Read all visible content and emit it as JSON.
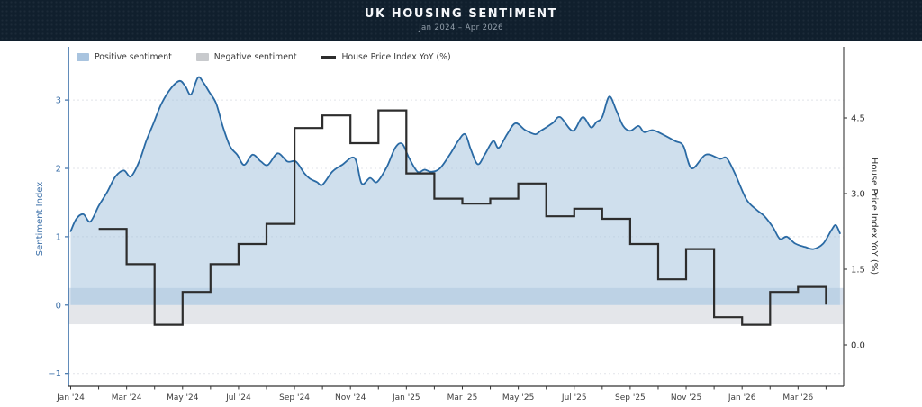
{
  "header": {
    "title": "UK HOUSING SENTIMENT",
    "subtitle": "Jan 2024 – Apr 2026"
  },
  "legend": {
    "items": [
      {
        "label": "Positive sentiment",
        "swatch_type": "patch",
        "color": "#a9c4df"
      },
      {
        "label": "Negative sentiment",
        "swatch_type": "patch",
        "color": "#c8cacd"
      },
      {
        "label": "House Price Index YoY (%)",
        "swatch_type": "line",
        "color": "#2d2d2d"
      }
    ]
  },
  "chart_data": {
    "type": "line",
    "title": "UK HOUSING SENTIMENT",
    "subtitle": "Jan 2024 – Apr 2026",
    "grid": "dashed horizontal at left-axis integers",
    "legend_position": "top-left, no frame",
    "x_axis": {
      "start": "2024-01",
      "end": "2026-04",
      "tick_month_offsets": [
        0,
        2,
        4,
        6,
        8,
        10,
        12,
        14,
        16,
        18,
        20,
        22,
        24,
        26
      ],
      "tick_labels": [
        "Jan '24",
        "Mar '24",
        "May '24",
        "Jul '24",
        "Sep '24",
        "Nov '24",
        "Jan '25",
        "Mar '25",
        "May '25",
        "Jul '25",
        "Sep '25",
        "Nov '25",
        "Jan '26",
        "Mar '26"
      ],
      "minor_ticks": "every month",
      "range_months": [
        -0.1,
        27.65
      ]
    },
    "left_axis": {
      "label": "Sentiment Index",
      "ticks": [
        3,
        2,
        1,
        0,
        -1
      ],
      "tick_labels": [
        "3",
        "2",
        "1",
        "0",
        "−1"
      ],
      "gridline_values": [
        3,
        2,
        1,
        -1
      ],
      "range": [
        -1.19,
        3.78
      ],
      "color": "#3b6fa8"
    },
    "right_axis": {
      "label": "House Price Index YoY (%)",
      "ticks": [
        4.5,
        3.0,
        1.5,
        0.0
      ],
      "tick_labels": [
        "4.5",
        "3.0",
        "1.5",
        "0.0"
      ],
      "range": [
        -0.82,
        5.91
      ],
      "color": "#303030"
    },
    "bands": [
      {
        "name": "positive-sentiment-band",
        "axis": "left",
        "from": 0,
        "to": 0.25,
        "color": "rgba(125,158,200,0.30)"
      },
      {
        "name": "negative-sentiment-band",
        "axis": "left",
        "from": -0.28,
        "to": 0,
        "color": "rgba(152,160,172,0.26)"
      }
    ],
    "series": [
      {
        "name": "Positive sentiment",
        "axis": "left",
        "style": "area+line",
        "line_color": "#2a6aa4",
        "fill_color": "rgba(168,196,223,0.55)",
        "x_unit": "months since Jan 2024 (fractional, ~weekly samples)",
        "points": [
          [
            0,
            1.08
          ],
          [
            0.2,
            1.26
          ],
          [
            0.45,
            1.33
          ],
          [
            0.7,
            1.22
          ],
          [
            1.0,
            1.45
          ],
          [
            1.3,
            1.65
          ],
          [
            1.6,
            1.88
          ],
          [
            1.9,
            1.97
          ],
          [
            2.15,
            1.88
          ],
          [
            2.45,
            2.1
          ],
          [
            2.7,
            2.4
          ],
          [
            2.95,
            2.65
          ],
          [
            3.25,
            2.95
          ],
          [
            3.6,
            3.18
          ],
          [
            3.9,
            3.28
          ],
          [
            4.1,
            3.2
          ],
          [
            4.3,
            3.08
          ],
          [
            4.55,
            3.33
          ],
          [
            4.75,
            3.25
          ],
          [
            4.95,
            3.12
          ],
          [
            5.2,
            2.95
          ],
          [
            5.45,
            2.6
          ],
          [
            5.7,
            2.32
          ],
          [
            5.95,
            2.2
          ],
          [
            6.2,
            2.05
          ],
          [
            6.5,
            2.2
          ],
          [
            6.8,
            2.1
          ],
          [
            7.05,
            2.05
          ],
          [
            7.4,
            2.22
          ],
          [
            7.75,
            2.1
          ],
          [
            8.05,
            2.1
          ],
          [
            8.35,
            1.93
          ],
          [
            8.55,
            1.85
          ],
          [
            8.8,
            1.8
          ],
          [
            9.0,
            1.76
          ],
          [
            9.35,
            1.95
          ],
          [
            9.7,
            2.05
          ],
          [
            10.15,
            2.15
          ],
          [
            10.4,
            1.78
          ],
          [
            10.7,
            1.86
          ],
          [
            10.95,
            1.8
          ],
          [
            11.3,
            2.02
          ],
          [
            11.6,
            2.3
          ],
          [
            11.85,
            2.36
          ],
          [
            12.1,
            2.15
          ],
          [
            12.4,
            1.95
          ],
          [
            12.65,
            1.98
          ],
          [
            12.9,
            1.95
          ],
          [
            13.2,
            2.0
          ],
          [
            13.55,
            2.2
          ],
          [
            13.85,
            2.4
          ],
          [
            14.1,
            2.5
          ],
          [
            14.3,
            2.28
          ],
          [
            14.55,
            2.06
          ],
          [
            14.8,
            2.2
          ],
          [
            15.1,
            2.4
          ],
          [
            15.3,
            2.3
          ],
          [
            15.6,
            2.5
          ],
          [
            15.9,
            2.66
          ],
          [
            16.25,
            2.56
          ],
          [
            16.6,
            2.5
          ],
          [
            16.8,
            2.55
          ],
          [
            17.0,
            2.6
          ],
          [
            17.25,
            2.67
          ],
          [
            17.5,
            2.75
          ],
          [
            17.95,
            2.55
          ],
          [
            18.3,
            2.75
          ],
          [
            18.6,
            2.6
          ],
          [
            18.8,
            2.68
          ],
          [
            19.0,
            2.75
          ],
          [
            19.25,
            3.05
          ],
          [
            19.5,
            2.85
          ],
          [
            19.75,
            2.62
          ],
          [
            20.0,
            2.55
          ],
          [
            20.3,
            2.62
          ],
          [
            20.5,
            2.53
          ],
          [
            20.8,
            2.56
          ],
          [
            21.15,
            2.5
          ],
          [
            21.6,
            2.4
          ],
          [
            21.9,
            2.33
          ],
          [
            22.2,
            2.0
          ],
          [
            22.7,
            2.2
          ],
          [
            23.2,
            2.14
          ],
          [
            23.45,
            2.15
          ],
          [
            23.75,
            1.92
          ],
          [
            24.15,
            1.55
          ],
          [
            24.5,
            1.4
          ],
          [
            24.8,
            1.3
          ],
          [
            25.1,
            1.14
          ],
          [
            25.35,
            0.97
          ],
          [
            25.6,
            1.0
          ],
          [
            25.9,
            0.9
          ],
          [
            26.25,
            0.85
          ],
          [
            26.55,
            0.82
          ],
          [
            26.9,
            0.9
          ],
          [
            27.2,
            1.1
          ],
          [
            27.35,
            1.17
          ],
          [
            27.5,
            1.05
          ]
        ]
      },
      {
        "name": "House Price Index YoY (%)",
        "axis": "right",
        "style": "step-post",
        "line_color": "#2d2d2d",
        "start_month_offset": 1,
        "months": [
          "2024-02",
          "2024-03",
          "2024-04",
          "2024-05",
          "2024-06",
          "2024-07",
          "2024-08",
          "2024-09",
          "2024-10",
          "2024-11",
          "2024-12",
          "2025-01",
          "2025-02",
          "2025-03",
          "2025-04",
          "2025-05",
          "2025-06",
          "2025-07",
          "2025-08",
          "2025-09",
          "2025-10",
          "2025-11",
          "2025-12",
          "2026-01",
          "2026-02",
          "2026-03",
          "2026-04"
        ],
        "values": [
          2.3,
          1.6,
          0.4,
          1.05,
          1.6,
          2.0,
          2.4,
          4.3,
          4.55,
          4.0,
          4.65,
          3.4,
          2.9,
          2.8,
          2.9,
          3.2,
          2.55,
          2.7,
          2.5,
          2.0,
          1.3,
          1.9,
          0.55,
          0.4,
          1.05,
          1.15,
          0.8
        ]
      }
    ]
  }
}
